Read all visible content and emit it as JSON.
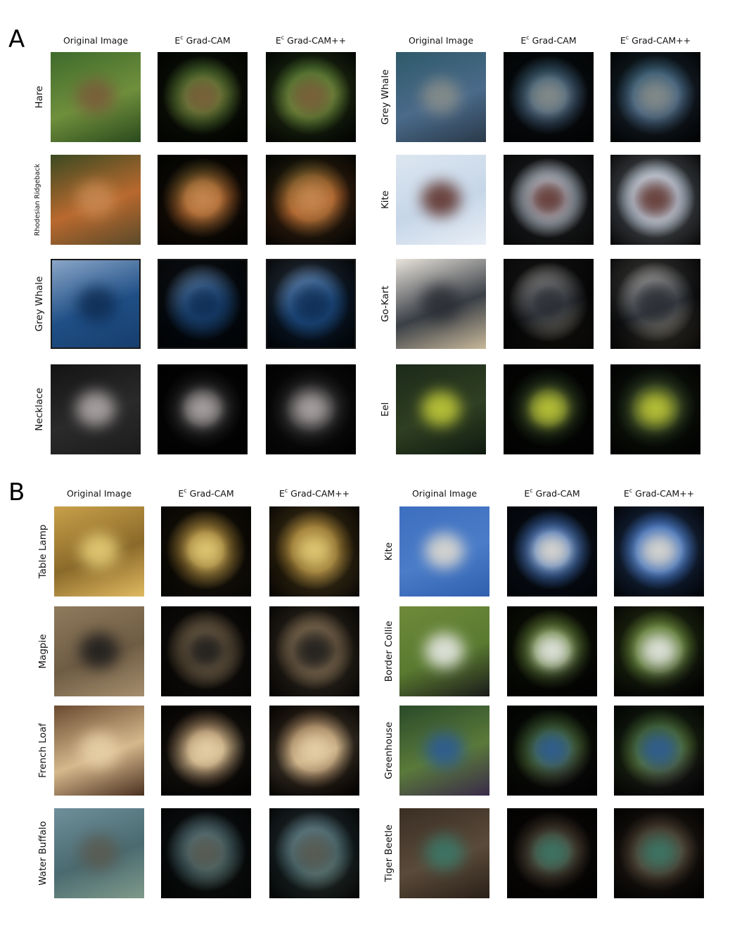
{
  "panels": [
    {
      "letter": "A",
      "halves": [
        {
          "headers": [
            "Original Image",
            "Grad-CAM",
            "Grad-CAM++"
          ],
          "header_prefix": "E",
          "header_sup": "c",
          "rows": [
            {
              "label": "Hare",
              "palette": [
                "#3f6b2c",
                "#6f8f3c",
                "#2a4a1d"
              ],
              "accent": "#7a5a3a"
            },
            {
              "label": "Rhodesian Ridgeback",
              "small": true,
              "palette": [
                "#3b4a22",
                "#b9692e",
                "#5a4a2a"
              ],
              "accent": "#c88a52"
            },
            {
              "label": "Grey Whale",
              "framed": true,
              "palette": [
                "#8aa6c8",
                "#1f4f86",
                "#173e6e"
              ],
              "accent": "#0e2c52"
            },
            {
              "label": "Necklace",
              "palette": [
                "#141414",
                "#2a2a2a",
                "#1c1c1c"
              ],
              "accent": "#b8b0b0"
            }
          ]
        },
        {
          "headers": [
            "Original Image",
            "Grad-CAM",
            "Grad-CAM++"
          ],
          "header_prefix": "E",
          "header_sup": "c",
          "rows": [
            {
              "label": "Grey Whale",
              "palette": [
                "#2f5a6a",
                "#4a6a8a",
                "#2a3a4a"
              ],
              "accent": "#8a8f8a"
            },
            {
              "label": "Kite",
              "palette": [
                "#dce6f0",
                "#c6d6e8",
                "#e8eef5"
              ],
              "accent": "#5a2a22"
            },
            {
              "label": "Go-Kart",
              "palette": [
                "#e9e4dc",
                "#3a3f46",
                "#c8b89a"
              ],
              "accent": "#2a2d33"
            },
            {
              "label": "Eel",
              "palette": [
                "#1c2a1a",
                "#2f3f22",
                "#0f1a10"
              ],
              "accent": "#c9d23a"
            }
          ]
        }
      ]
    },
    {
      "letter": "B",
      "halves": [
        {
          "headers": [
            "Original Image",
            "Grad-CAM",
            "Grad-CAM++"
          ],
          "header_prefix": "E",
          "header_sup": "c",
          "rows": [
            {
              "label": "Table Lamp",
              "palette": [
                "#c9a04a",
                "#8a6a2a",
                "#e0b960"
              ],
              "accent": "#e9d17a"
            },
            {
              "label": "Magpie",
              "palette": [
                "#8f7a5c",
                "#6e5c44",
                "#a58e6c"
              ],
              "accent": "#1a1a1a"
            },
            {
              "label": "French Loaf",
              "palette": [
                "#6a4a30",
                "#d6b88c",
                "#4a3020"
              ],
              "accent": "#e8d2a8"
            },
            {
              "label": "Water Buffalo",
              "palette": [
                "#6f8f9a",
                "#4a6a70",
                "#7f9a8a"
              ],
              "accent": "#5a5a50"
            }
          ]
        },
        {
          "headers": [
            "Original Image",
            "Grad-CAM",
            "Grad-CAM++"
          ],
          "header_prefix": "E",
          "header_sup": "c",
          "rows": [
            {
              "label": "Kite",
              "palette": [
                "#3d6fc0",
                "#4a7cc8",
                "#2f5fae"
              ],
              "accent": "#e8e0d0"
            },
            {
              "label": "Border Collie",
              "palette": [
                "#6f8a3a",
                "#5a7a30",
                "#1a1a1a"
              ],
              "accent": "#f0f0f0"
            },
            {
              "label": "Greenhouse",
              "palette": [
                "#2a4a2a",
                "#5a7a3a",
                "#3a2a4a"
              ],
              "accent": "#2a5a9a"
            },
            {
              "label": "Tiger Beetle",
              "palette": [
                "#3a2e24",
                "#5a4a3a",
                "#2a2018"
              ],
              "accent": "#3a7a6a"
            }
          ]
        }
      ]
    }
  ]
}
